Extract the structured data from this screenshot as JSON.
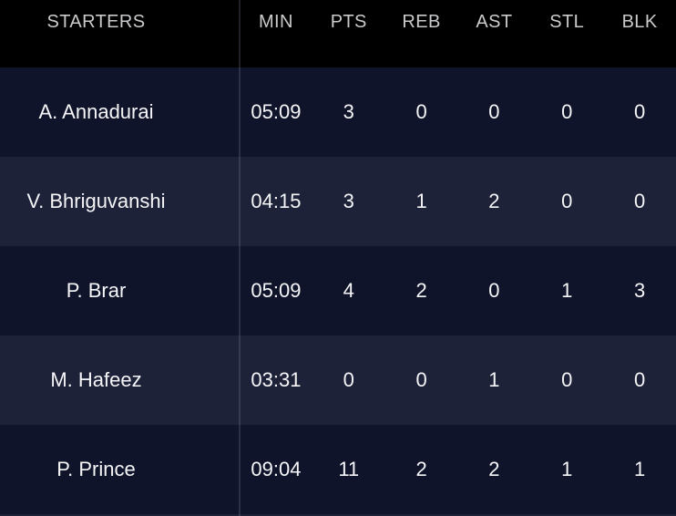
{
  "table": {
    "columns": [
      "STARTERS",
      "MIN",
      "PTS",
      "REB",
      "AST",
      "STL",
      "BLK"
    ],
    "rows": [
      [
        "A. Annadurai",
        "05:09",
        "3",
        "0",
        "0",
        "0",
        "0"
      ],
      [
        "V. Bhriguvanshi",
        "04:15",
        "3",
        "1",
        "2",
        "0",
        "0"
      ],
      [
        "P. Brar",
        "05:09",
        "4",
        "2",
        "0",
        "1",
        "3"
      ],
      [
        "M. Hafeez",
        "03:31",
        "0",
        "0",
        "1",
        "0",
        "0"
      ],
      [
        "P. Prince",
        "09:04",
        "11",
        "2",
        "2",
        "1",
        "1"
      ]
    ]
  },
  "colors": {
    "header_bg": "#000000",
    "row_dark": "#10142a",
    "row_light": "#1d2239",
    "header_text": "#c9cacc",
    "row_text": "#f5f5f7",
    "divider": "rgba(170,180,205,0.18)"
  }
}
